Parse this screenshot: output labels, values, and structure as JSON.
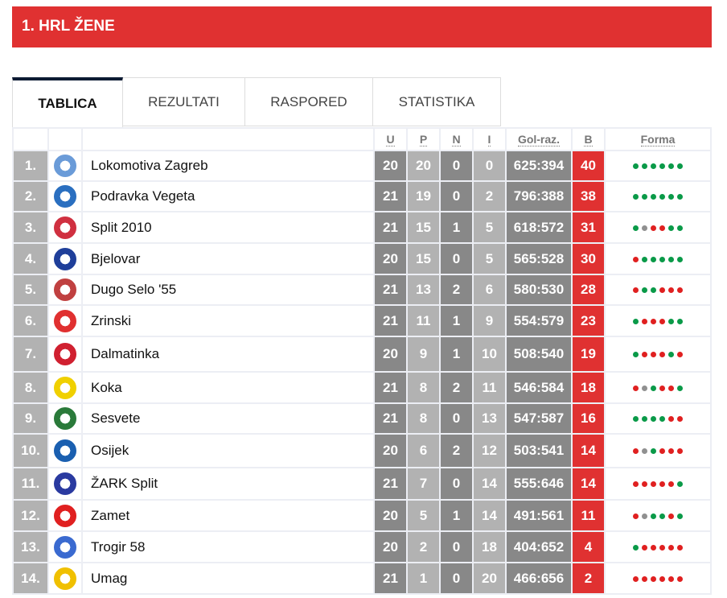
{
  "title": "1. HRL ŽENE",
  "tabs": [
    "TABLICA",
    "REZULTATI",
    "RASPORED",
    "STATISTIKA"
  ],
  "columns": {
    "u": "U",
    "p": "P",
    "n": "N",
    "i": "I",
    "gol": "Gol-raz.",
    "b": "B",
    "forma": "Forma"
  },
  "form_colors": {
    "W": "#0a9a48",
    "L": "#e02020",
    "D": "#909090"
  },
  "rows": [
    {
      "rank": "1.",
      "team": "Lokomotiva Zagreb",
      "u": "20",
      "p": "20",
      "n": "0",
      "i": "0",
      "gol": "625:394",
      "b": "40",
      "form": "WWWWWW",
      "logo": "#6a9bd8"
    },
    {
      "rank": "2.",
      "team": "Podravka Vegeta",
      "u": "21",
      "p": "19",
      "n": "0",
      "i": "2",
      "gol": "796:388",
      "b": "38",
      "form": "WWWWWW",
      "logo": "#2a6fc0"
    },
    {
      "rank": "3.",
      "team": "Split 2010",
      "u": "21",
      "p": "15",
      "n": "1",
      "i": "5",
      "gol": "618:572",
      "b": "31",
      "form": "WDLLWW",
      "logo": "#d03040"
    },
    {
      "rank": "4.",
      "team": "Bjelovar",
      "u": "20",
      "p": "15",
      "n": "0",
      "i": "5",
      "gol": "565:528",
      "b": "30",
      "form": "LWWWWW",
      "logo": "#1f3f9a"
    },
    {
      "rank": "5.",
      "team": "Dugo Selo '55",
      "u": "21",
      "p": "13",
      "n": "2",
      "i": "6",
      "gol": "580:530",
      "b": "28",
      "form": "LWWLLL",
      "logo": "#c04040"
    },
    {
      "rank": "6.",
      "team": "Zrinski",
      "u": "21",
      "p": "11",
      "n": "1",
      "i": "9",
      "gol": "554:579",
      "b": "23",
      "form": "WLLLWW",
      "logo": "#e03030"
    },
    {
      "rank": "7.",
      "team": "Dalmatinka",
      "u": "20",
      "p": "9",
      "n": "1",
      "i": "10",
      "gol": "508:540",
      "b": "19",
      "form": "WLLLWL",
      "logo": "#d02030"
    },
    {
      "rank": "8.",
      "team": "Koka",
      "u": "21",
      "p": "8",
      "n": "2",
      "i": "11",
      "gol": "546:584",
      "b": "18",
      "form": "LDWLLW",
      "logo": "#f0d000"
    },
    {
      "rank": "9.",
      "team": "Sesvete",
      "u": "21",
      "p": "8",
      "n": "0",
      "i": "13",
      "gol": "547:587",
      "b": "16",
      "form": "WWWWLL",
      "logo": "#2a7a3a"
    },
    {
      "rank": "10.",
      "team": "Osijek",
      "u": "20",
      "p": "6",
      "n": "2",
      "i": "12",
      "gol": "503:541",
      "b": "14",
      "form": "LDWLLL",
      "logo": "#1a5fb0"
    },
    {
      "rank": "11.",
      "team": "ŽARK Split",
      "u": "21",
      "p": "7",
      "n": "0",
      "i": "14",
      "gol": "555:646",
      "b": "14",
      "form": "LLLLLW",
      "logo": "#2a3aa0"
    },
    {
      "rank": "12.",
      "team": "Zamet",
      "u": "20",
      "p": "5",
      "n": "1",
      "i": "14",
      "gol": "491:561",
      "b": "11",
      "form": "LDWWLW",
      "logo": "#e02020"
    },
    {
      "rank": "13.",
      "team": "Trogir 58",
      "u": "20",
      "p": "2",
      "n": "0",
      "i": "18",
      "gol": "404:652",
      "b": "4",
      "form": "WLLLLL",
      "logo": "#3a6ad0"
    },
    {
      "rank": "14.",
      "team": "Umag",
      "u": "21",
      "p": "1",
      "n": "0",
      "i": "20",
      "gol": "466:656",
      "b": "2",
      "form": "LLLLLL",
      "logo": "#f0c000"
    }
  ]
}
